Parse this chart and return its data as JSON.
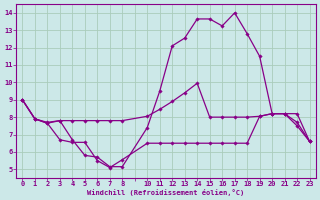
{
  "background_color": "#cce8e8",
  "grid_color": "#aaccbb",
  "line_color": "#880088",
  "xlabel": "Windchill (Refroidissement éolien,°C)",
  "xlim": [
    -0.5,
    23.5
  ],
  "ylim": [
    4.5,
    14.5
  ],
  "yticks": [
    5,
    6,
    7,
    8,
    9,
    10,
    11,
    12,
    13,
    14
  ],
  "xticks": [
    0,
    1,
    2,
    3,
    4,
    5,
    6,
    7,
    8,
    9,
    10,
    11,
    12,
    13,
    14,
    15,
    16,
    17,
    18,
    19,
    20,
    21,
    22,
    23
  ],
  "xticklabels": [
    "0",
    "1",
    "2",
    "3",
    "4",
    "5",
    "6",
    "7",
    "8",
    "",
    "10",
    "11",
    "12",
    "13",
    "14",
    "15",
    "16",
    "17",
    "18",
    "19",
    "20",
    "21",
    "22",
    "23"
  ],
  "series1_x": [
    0,
    1,
    2,
    3,
    4,
    5,
    6,
    7,
    8,
    10,
    11,
    12,
    13,
    14,
    15,
    16,
    17,
    18,
    19,
    20,
    21,
    22,
    23
  ],
  "series1_y": [
    9.0,
    7.9,
    7.7,
    7.8,
    6.7,
    5.8,
    5.7,
    5.15,
    5.15,
    7.4,
    9.5,
    12.1,
    12.55,
    13.65,
    13.65,
    13.25,
    14.0,
    12.8,
    11.5,
    8.2,
    8.2,
    7.7,
    6.6
  ],
  "series2_x": [
    0,
    1,
    2,
    3,
    4,
    5,
    6,
    7,
    8,
    10,
    11,
    12,
    13,
    14,
    15,
    16,
    17,
    18,
    19,
    20,
    21,
    22,
    23
  ],
  "series2_y": [
    9.0,
    7.9,
    7.65,
    7.8,
    7.8,
    7.8,
    7.8,
    7.8,
    7.8,
    8.05,
    8.45,
    8.9,
    9.4,
    9.95,
    8.0,
    8.0,
    8.0,
    8.0,
    8.05,
    8.2,
    8.2,
    8.2,
    6.6
  ],
  "series3_x": [
    0,
    1,
    2,
    3,
    4,
    5,
    6,
    7,
    8,
    10,
    11,
    12,
    13,
    14,
    15,
    16,
    17,
    18,
    19,
    20,
    21,
    22,
    23
  ],
  "series3_y": [
    9.0,
    7.9,
    7.65,
    6.7,
    6.55,
    6.55,
    5.5,
    5.1,
    5.55,
    6.5,
    6.5,
    6.5,
    6.5,
    6.5,
    6.5,
    6.5,
    6.5,
    6.5,
    8.05,
    8.2,
    8.2,
    7.5,
    6.6
  ]
}
